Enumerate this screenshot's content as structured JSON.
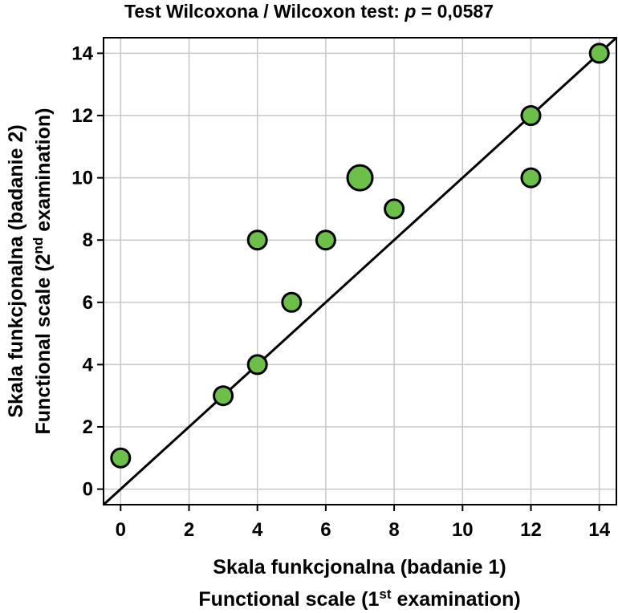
{
  "chart_data": {
    "type": "scatter",
    "title_prefix": "Test Wilcoxona / Wilcoxon test: ",
    "title_p": "p",
    "title_suffix": " = 0,0587",
    "xlabel_line1": "Skala funkcjonalna (badanie 1)",
    "xlabel_line2_pre": "Functional scale (1",
    "xlabel_line2_sup": "st",
    "xlabel_line2_post": " examination)",
    "ylabel_line1": "Skala funkcjonalna (badanie 2)",
    "ylabel_line2_pre": "Functional scale (2",
    "ylabel_line2_sup": "nd",
    "ylabel_line2_post": " examination)",
    "xlim": [
      -0.5,
      14.5
    ],
    "ylim": [
      -0.5,
      14.5
    ],
    "xticks": [
      0,
      2,
      4,
      6,
      8,
      10,
      12,
      14
    ],
    "yticks": [
      0,
      2,
      4,
      6,
      8,
      10,
      12,
      14
    ],
    "grid": true,
    "reference_line": "y = x",
    "marker_color": "#6cc04a",
    "points": [
      {
        "x": 0,
        "y": 1,
        "size": 1
      },
      {
        "x": 3,
        "y": 3,
        "size": 1
      },
      {
        "x": 4,
        "y": 4,
        "size": 1
      },
      {
        "x": 4,
        "y": 8,
        "size": 1
      },
      {
        "x": 5,
        "y": 6,
        "size": 1
      },
      {
        "x": 6,
        "y": 8,
        "size": 1
      },
      {
        "x": 7,
        "y": 10,
        "size": 2
      },
      {
        "x": 8,
        "y": 9,
        "size": 1
      },
      {
        "x": 12,
        "y": 12,
        "size": 1
      },
      {
        "x": 12,
        "y": 10,
        "size": 1
      },
      {
        "x": 14,
        "y": 14,
        "size": 1
      }
    ]
  }
}
